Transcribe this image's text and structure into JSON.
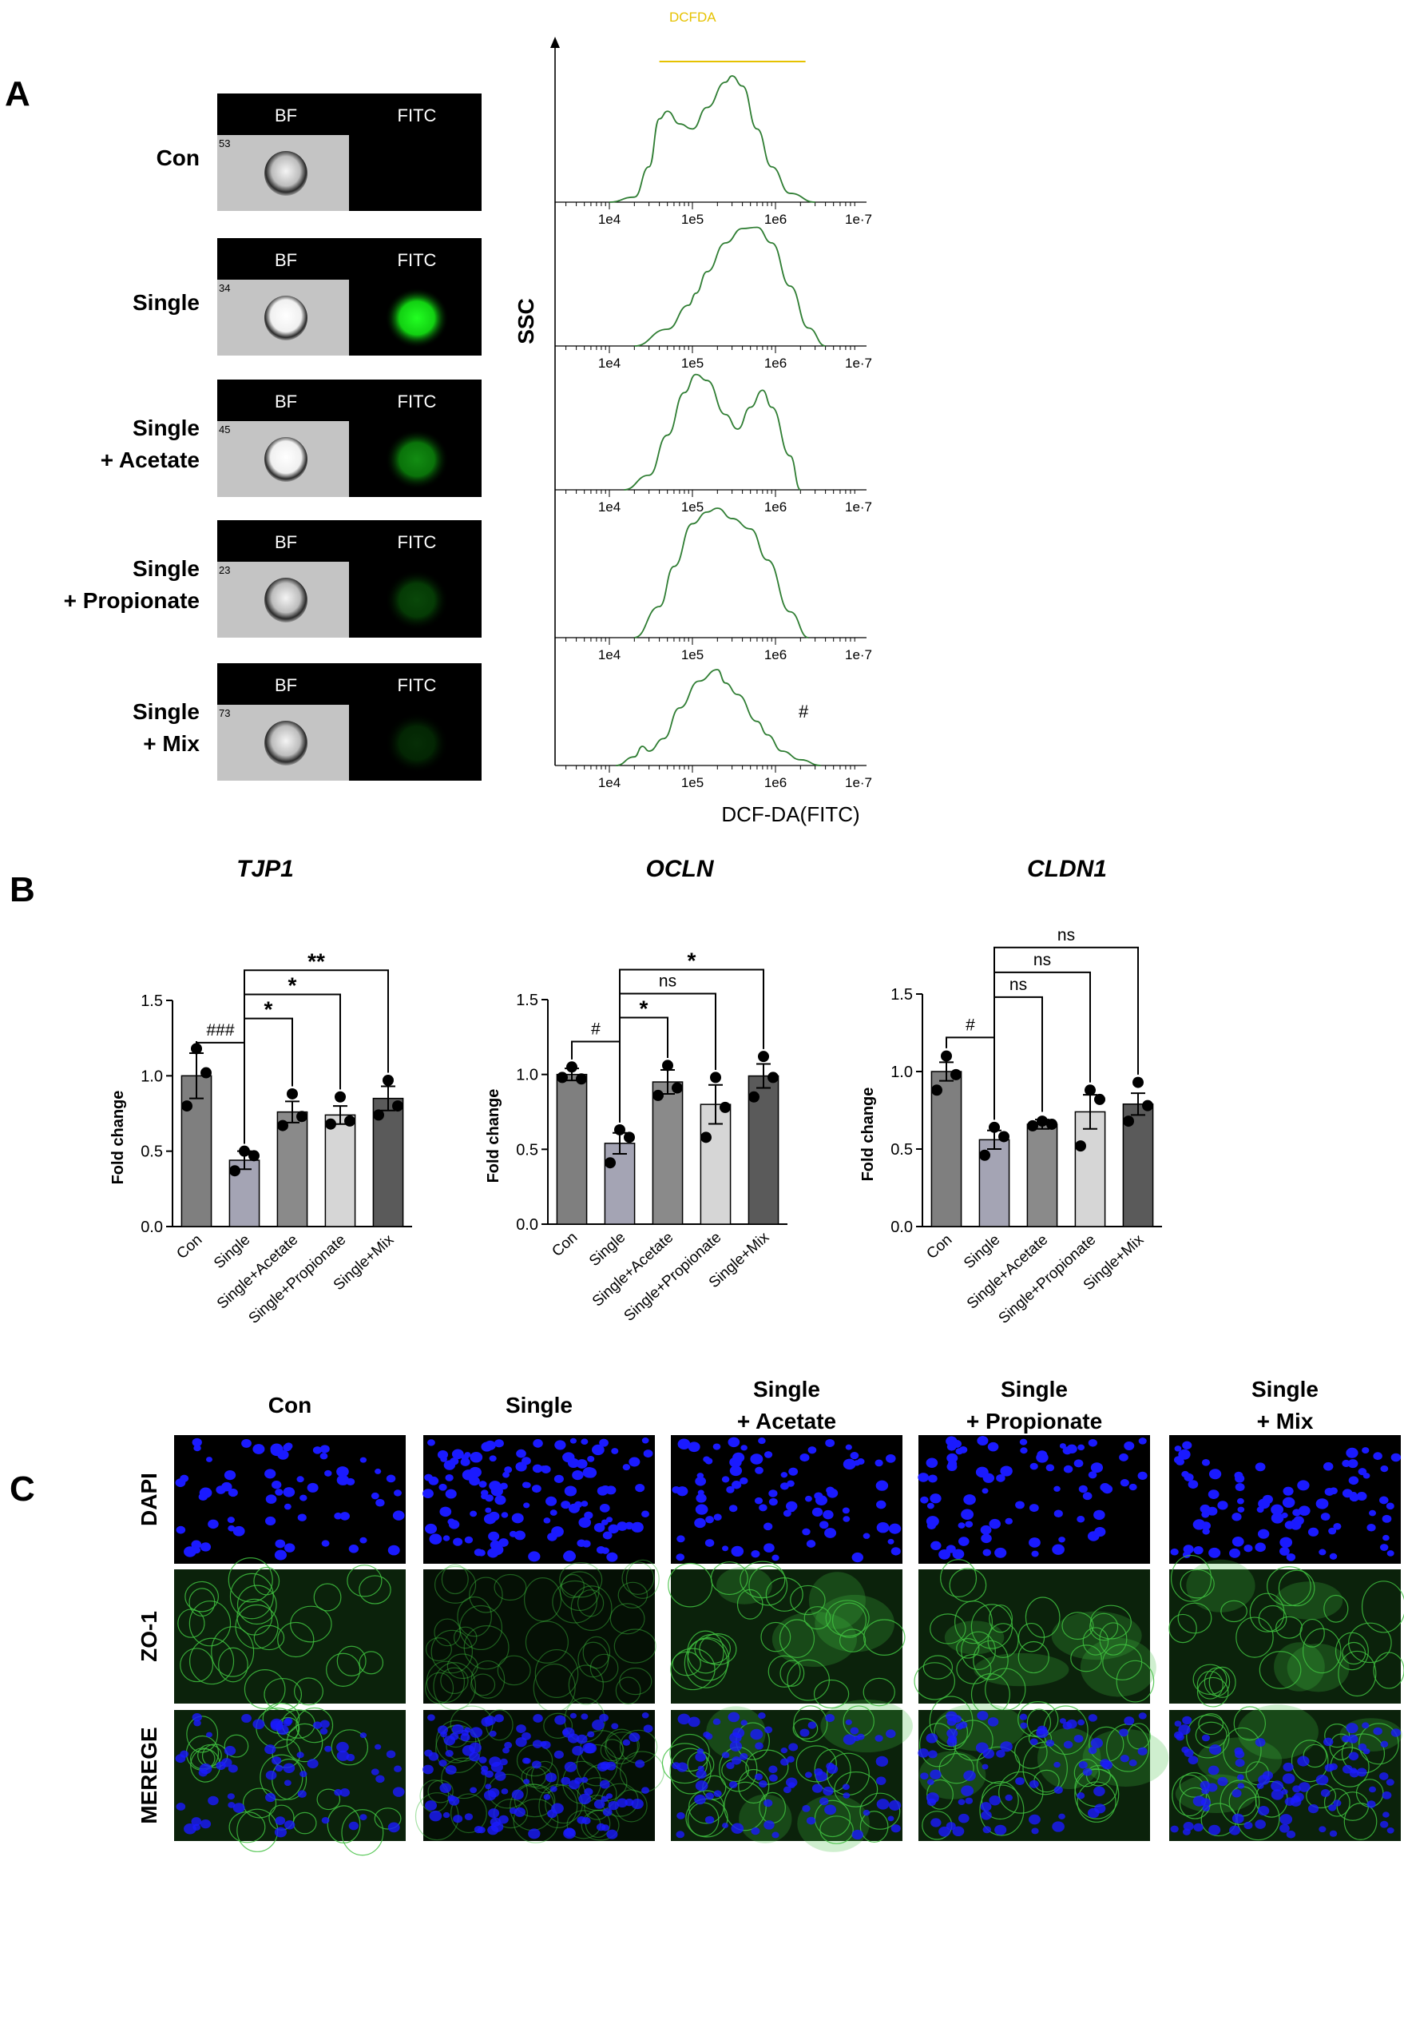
{
  "panel_a": {
    "letter": "A",
    "channel_labels": [
      "BF",
      "FITC"
    ],
    "rows": [
      {
        "name": [
          "Con"
        ],
        "cell_number": "53",
        "fitc_intensity": 0.0
      },
      {
        "name": [
          "Single"
        ],
        "cell_number": "34",
        "fitc_intensity": 1.0
      },
      {
        "name": [
          "Single",
          "+ Acetate"
        ],
        "cell_number": "45",
        "fitc_intensity": 0.55
      },
      {
        "name": [
          "Single",
          "+ Propionate"
        ],
        "cell_number": "23",
        "fitc_intensity": 0.28
      },
      {
        "name": [
          "Single",
          "+ Mix"
        ],
        "cell_number": "73",
        "fitc_intensity": 0.18
      }
    ],
    "histogram": {
      "gate_label": "DCFDA",
      "gate_range": [
        40000,
        2300000
      ],
      "y_axis_label": "SSC",
      "x_axis_label": "DCF-DA(FITC)",
      "x_ticks": [
        {
          "value": 10000,
          "label": "1e4"
        },
        {
          "value": 100000,
          "label": "1e5"
        },
        {
          "value": 1000000,
          "label": "1e6"
        },
        {
          "value": 10000000,
          "label": "1e·7"
        }
      ],
      "annotation": "#",
      "traces": [
        {
          "points": [
            [
              10000,
              0.0
            ],
            [
              20000,
              0.04
            ],
            [
              30000,
              0.28
            ],
            [
              40000,
              0.66
            ],
            [
              50000,
              0.72
            ],
            [
              70000,
              0.62
            ],
            [
              100000,
              0.58
            ],
            [
              150000,
              0.75
            ],
            [
              250000,
              0.95
            ],
            [
              300000,
              1.0
            ],
            [
              400000,
              0.92
            ],
            [
              600000,
              0.58
            ],
            [
              900000,
              0.28
            ],
            [
              1500000,
              0.07
            ],
            [
              3000000,
              0.0
            ]
          ]
        },
        {
          "points": [
            [
              20000,
              0.0
            ],
            [
              50000,
              0.14
            ],
            [
              90000,
              0.34
            ],
            [
              110000,
              0.44
            ],
            [
              150000,
              0.62
            ],
            [
              250000,
              0.86
            ],
            [
              400000,
              0.98
            ],
            [
              600000,
              0.99
            ],
            [
              900000,
              0.86
            ],
            [
              1500000,
              0.5
            ],
            [
              2500000,
              0.15
            ],
            [
              4000000,
              0.0
            ]
          ]
        },
        {
          "points": [
            [
              15000,
              0.0
            ],
            [
              30000,
              0.12
            ],
            [
              50000,
              0.45
            ],
            [
              80000,
              0.8
            ],
            [
              110000,
              0.95
            ],
            [
              150000,
              0.9
            ],
            [
              250000,
              0.62
            ],
            [
              350000,
              0.5
            ],
            [
              500000,
              0.68
            ],
            [
              700000,
              0.82
            ],
            [
              900000,
              0.68
            ],
            [
              1500000,
              0.28
            ],
            [
              2000000,
              0.0
            ]
          ]
        },
        {
          "points": [
            [
              20000,
              0.0
            ],
            [
              40000,
              0.24
            ],
            [
              60000,
              0.55
            ],
            [
              100000,
              0.88
            ],
            [
              150000,
              0.97
            ],
            [
              200000,
              1.0
            ],
            [
              300000,
              0.92
            ],
            [
              500000,
              0.84
            ],
            [
              800000,
              0.6
            ],
            [
              1500000,
              0.2
            ],
            [
              2500000,
              0.0
            ]
          ]
        },
        {
          "points": [
            [
              12000,
              0.0
            ],
            [
              20000,
              0.09
            ],
            [
              25000,
              0.2
            ],
            [
              30000,
              0.15
            ],
            [
              45000,
              0.28
            ],
            [
              70000,
              0.6
            ],
            [
              120000,
              0.88
            ],
            [
              200000,
              1.0
            ],
            [
              250000,
              0.86
            ],
            [
              350000,
              0.74
            ],
            [
              600000,
              0.46
            ],
            [
              800000,
              0.32
            ],
            [
              1200000,
              0.15
            ],
            [
              2000000,
              0.06
            ],
            [
              3500000,
              0.0
            ]
          ]
        }
      ]
    }
  },
  "panel_b": {
    "letter": "B",
    "chart_data": [
      {
        "type": "bar",
        "title": "TJP1",
        "ylabel": "Fold change",
        "ylim": [
          0,
          1.5
        ],
        "yticks": [
          "0.0",
          "0.5",
          "1.0",
          "1.5"
        ],
        "categories": [
          "Con",
          "Single",
          "Single+Acetate",
          "Single+Propionate",
          "Single+Mix"
        ],
        "values": [
          1.0,
          0.44,
          0.76,
          0.74,
          0.85
        ],
        "errors": [
          0.15,
          0.06,
          0.07,
          0.06,
          0.08
        ],
        "points": [
          [
            1.18,
            1.02,
            0.8
          ],
          [
            0.5,
            0.47,
            0.37
          ],
          [
            0.88,
            0.73,
            0.67
          ],
          [
            0.86,
            0.7,
            0.68
          ],
          [
            0.97,
            0.8,
            0.74
          ]
        ],
        "brackets": [
          {
            "from": 0,
            "to": 1,
            "label": "###"
          },
          {
            "from": 1,
            "to": 2,
            "label": "*"
          },
          {
            "from": 1,
            "to": 3,
            "label": "*"
          },
          {
            "from": 1,
            "to": 4,
            "label": "**"
          }
        ]
      },
      {
        "type": "bar",
        "title": "OCLN",
        "ylabel": "Fold change",
        "ylim": [
          0,
          1.5
        ],
        "yticks": [
          "0.0",
          "0.5",
          "1.0",
          "1.5"
        ],
        "categories": [
          "Con",
          "Single",
          "Single+Acetate",
          "Single+Propionate",
          "Single+Mix"
        ],
        "values": [
          1.0,
          0.54,
          0.95,
          0.8,
          0.99
        ],
        "errors": [
          0.04,
          0.07,
          0.08,
          0.13,
          0.08
        ],
        "points": [
          [
            1.05,
            0.97,
            0.98
          ],
          [
            0.63,
            0.58,
            0.41
          ],
          [
            1.06,
            0.91,
            0.86
          ],
          [
            0.98,
            0.78,
            0.58
          ],
          [
            1.12,
            0.98,
            0.85
          ]
        ],
        "brackets": [
          {
            "from": 0,
            "to": 1,
            "label": "#"
          },
          {
            "from": 1,
            "to": 2,
            "label": "*"
          },
          {
            "from": 1,
            "to": 3,
            "label": "ns"
          },
          {
            "from": 1,
            "to": 4,
            "label": "*"
          }
        ]
      },
      {
        "type": "bar",
        "title": "CLDN1",
        "ylabel": "Fold change",
        "ylim": [
          0,
          1.5
        ],
        "yticks": [
          "0.0",
          "0.5",
          "1.0",
          "1.5"
        ],
        "categories": [
          "Con",
          "Single",
          "Single+Acetate",
          "Single+Propionate",
          "Single+Mix"
        ],
        "values": [
          1.0,
          0.56,
          0.66,
          0.74,
          0.79
        ],
        "errors": [
          0.06,
          0.06,
          0.03,
          0.11,
          0.07
        ],
        "points": [
          [
            1.1,
            0.98,
            0.88
          ],
          [
            0.64,
            0.58,
            0.46
          ],
          [
            0.68,
            0.66,
            0.65
          ],
          [
            0.88,
            0.82,
            0.52
          ],
          [
            0.93,
            0.78,
            0.68
          ]
        ],
        "brackets": [
          {
            "from": 0,
            "to": 1,
            "label": "#"
          },
          {
            "from": 1,
            "to": 2,
            "label": "ns"
          },
          {
            "from": 1,
            "to": 3,
            "label": "ns"
          },
          {
            "from": 1,
            "to": 4,
            "label": "ns"
          }
        ]
      }
    ]
  },
  "panel_c": {
    "letter": "C",
    "columns": [
      [
        "Con"
      ],
      [
        "Single"
      ],
      [
        "Single",
        "+ Acetate"
      ],
      [
        "Single",
        "+ Propionate"
      ],
      [
        "Single",
        "+ Mix"
      ]
    ],
    "rows": [
      "DAPI",
      "ZO-1",
      "MEREGE"
    ],
    "colors": {
      "dapi": "#1a1aff",
      "zo1": "#3fbf3f"
    }
  }
}
